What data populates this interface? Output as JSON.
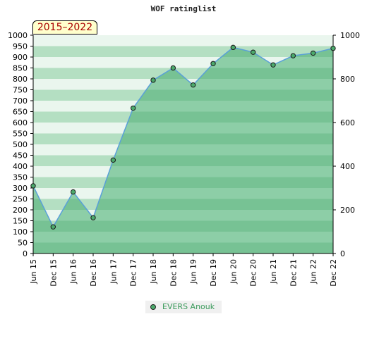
{
  "title": "WOF ratinglist",
  "period": "2015–2022",
  "colors": {
    "line": "#5aa0d8",
    "area": "#7dc79a",
    "marker": "#4caa6c",
    "band_light": "#eaf6ee",
    "band_dark": "#b4dfc2"
  },
  "chart_data": {
    "type": "area",
    "title": "WOF ratinglist",
    "categories": [
      "Jun 15",
      "Dec 15",
      "Jun 16",
      "Dec 16",
      "Jun 17",
      "Dec 17",
      "Jun 18",
      "Dec 18",
      "Jun 19",
      "Dec 19",
      "Jun 20",
      "Dec 20",
      "Jun 21",
      "Dec 21",
      "Jun 22",
      "Dec 22"
    ],
    "series": [
      {
        "name": "EVERS Anouk",
        "values": [
          310,
          122,
          282,
          164,
          428,
          666,
          794,
          850,
          772,
          870,
          944,
          922,
          864,
          906,
          918,
          940
        ]
      }
    ],
    "y_left": {
      "min": 0,
      "max": 1000,
      "ticks": [
        0,
        50,
        100,
        150,
        200,
        250,
        300,
        350,
        400,
        450,
        500,
        550,
        600,
        650,
        700,
        750,
        800,
        850,
        900,
        950,
        1000
      ]
    },
    "y_right": {
      "min": 0,
      "max": 1000,
      "ticks": [
        0,
        200,
        400,
        600,
        800,
        1000
      ]
    },
    "legend": "bottom-center",
    "grid": true
  }
}
